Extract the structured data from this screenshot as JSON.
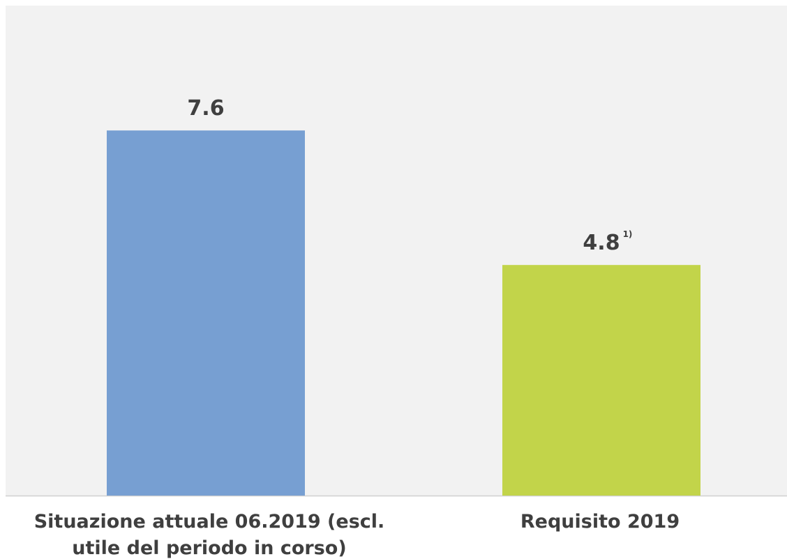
{
  "chart_data": {
    "type": "bar",
    "categories": [
      "Situazione attuale 06.2019 (escl. utile del periodo in corso)",
      "Requisito 2019"
    ],
    "values": [
      7.6,
      4.8
    ],
    "data_labels": [
      "7.6",
      "4.8"
    ],
    "data_label_footnotes": [
      "",
      "1)"
    ],
    "colors": [
      "#779fd2",
      "#c2d44a"
    ],
    "ylim": [
      0,
      10.2
    ],
    "grid": false,
    "legend": "none",
    "background": "#f2f2f2",
    "baseline_color": "#d0d0d0",
    "text_color": "#3f3f3f"
  }
}
